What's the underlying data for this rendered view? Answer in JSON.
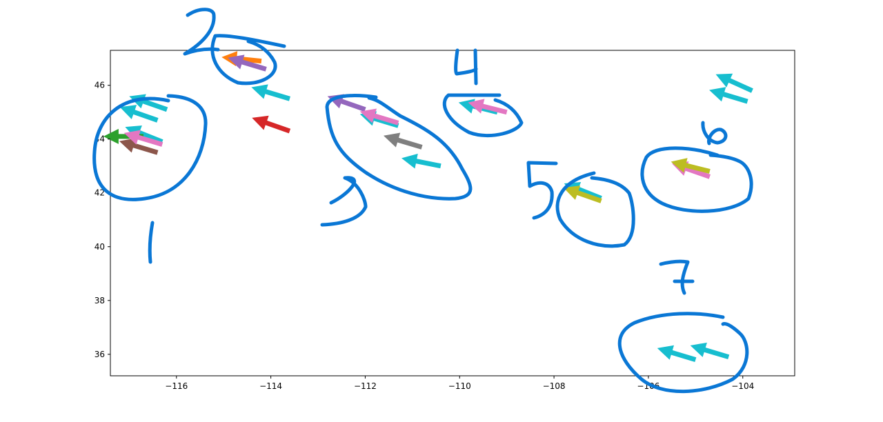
{
  "chart_data": {
    "type": "quiver",
    "title": "",
    "xlabel": "",
    "ylabel": "",
    "xlim": [
      -117.4,
      -102.9
    ],
    "ylim": [
      35.2,
      47.3
    ],
    "grid": false,
    "xticks": [
      -116,
      -114,
      -112,
      -110,
      -108,
      -106,
      -104
    ],
    "yticks": [
      36,
      38,
      40,
      42,
      44,
      46
    ],
    "xtick_labels": [
      "−116",
      "−114",
      "−112",
      "−110",
      "−108",
      "−106",
      "−104"
    ],
    "ytick_labels": [
      "36",
      "38",
      "40",
      "42",
      "44",
      "46"
    ],
    "series": [
      {
        "color": "#17becf",
        "arrows": [
          {
            "x": -116.2,
            "y": 45.1,
            "u": -1,
            "v": 0.35
          },
          {
            "x": -116.4,
            "y": 44.7,
            "u": -1,
            "v": 0.35
          },
          {
            "x": -116.3,
            "y": 43.9,
            "u": -1,
            "v": 0.4
          },
          {
            "x": -113.6,
            "y": 45.5,
            "u": -1,
            "v": 0.3
          },
          {
            "x": -111.3,
            "y": 44.5,
            "u": -1,
            "v": 0.3
          },
          {
            "x": -110.4,
            "y": 43.0,
            "u": -1,
            "v": 0.2
          },
          {
            "x": -109.2,
            "y": 45.0,
            "u": -1,
            "v": 0.25
          },
          {
            "x": -107.0,
            "y": 41.8,
            "u": -1,
            "v": 0.4
          },
          {
            "x": -103.8,
            "y": 45.8,
            "u": -1,
            "v": 0.45
          },
          {
            "x": -103.9,
            "y": 45.4,
            "u": -1,
            "v": 0.3
          },
          {
            "x": -104.3,
            "y": 35.9,
            "u": -1,
            "v": 0.3
          },
          {
            "x": -105.0,
            "y": 35.8,
            "u": -1,
            "v": 0.3
          }
        ]
      },
      {
        "color": "#ff7f0e",
        "arrows": [
          {
            "x": -114.2,
            "y": 46.9,
            "u": -1,
            "v": 0.1
          }
        ]
      },
      {
        "color": "#9467bd",
        "arrows": [
          {
            "x": -114.1,
            "y": 46.6,
            "u": -1,
            "v": 0.3
          },
          {
            "x": -112.0,
            "y": 45.1,
            "u": -1,
            "v": 0.35
          }
        ]
      },
      {
        "color": "#d62728",
        "arrows": [
          {
            "x": -113.6,
            "y": 44.3,
            "u": -1,
            "v": 0.35
          }
        ]
      },
      {
        "color": "#2ca02c",
        "arrows": [
          {
            "x": -116.7,
            "y": 44.1,
            "u": -1,
            "v": 0.0
          }
        ]
      },
      {
        "color": "#8c564b",
        "arrows": [
          {
            "x": -116.4,
            "y": 43.5,
            "u": -1,
            "v": 0.3
          }
        ]
      },
      {
        "color": "#e377c2",
        "arrows": [
          {
            "x": -116.3,
            "y": 43.8,
            "u": -1,
            "v": 0.3
          },
          {
            "x": -109.0,
            "y": 45.0,
            "u": -1,
            "v": 0.25
          },
          {
            "x": -111.3,
            "y": 44.6,
            "u": -1,
            "v": 0.3
          },
          {
            "x": -104.7,
            "y": 42.6,
            "u": -1,
            "v": 0.35
          }
        ]
      },
      {
        "color": "#7f7f7f",
        "arrows": [
          {
            "x": -110.8,
            "y": 43.7,
            "u": -1,
            "v": 0.3
          }
        ]
      },
      {
        "color": "#bcbd22",
        "arrows": [
          {
            "x": -107.0,
            "y": 41.7,
            "u": -1,
            "v": 0.35
          },
          {
            "x": -104.7,
            "y": 42.8,
            "u": -1,
            "v": 0.25
          }
        ]
      }
    ],
    "annotations": [
      "1",
      "2",
      "3",
      "4",
      "5",
      "6",
      "7"
    ]
  }
}
